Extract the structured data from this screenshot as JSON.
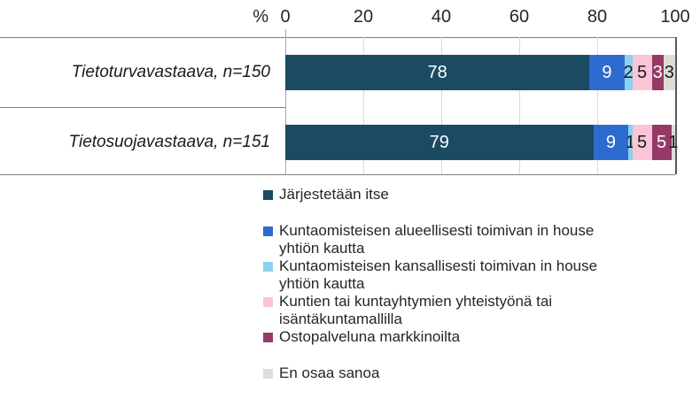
{
  "chart_data": {
    "type": "bar",
    "subtype": "horizontal-stacked",
    "unit": "%",
    "title": "",
    "xlabel": "%",
    "ylabel": "",
    "xlim": [
      0,
      100
    ],
    "ticks": [
      0,
      20,
      40,
      60,
      80,
      100
    ],
    "grid": true,
    "legend_position": "bottom",
    "categories": [
      "Tietoturvavastaava, n=150",
      "Tietosuojavastaava, n=151"
    ],
    "series": [
      {
        "name": "Järjestetään itse",
        "color": "#1b4a63",
        "label_color": "#ffffff",
        "values": [
          78,
          79
        ]
      },
      {
        "name": "Kuntaomisteisen alueellisesti toimivan in house\nyhtiön kautta",
        "color": "#2e6bd0",
        "label_color": "#ffffff",
        "values": [
          9,
          9
        ]
      },
      {
        "name": "Kuntaomisteisen kansallisesti toimivan in house\nyhtiön kautta",
        "color": "#8dd0ef",
        "label_color": "#1a1a1a",
        "values": [
          2,
          1
        ]
      },
      {
        "name": "Kuntien tai kuntayhtymien yhteistyönä tai\nisäntäkuntamallilla",
        "color": "#fac5d6",
        "label_color": "#1a1a1a",
        "values": [
          5,
          5
        ]
      },
      {
        "name": "Ostopalveluna markkinoilta",
        "color": "#953a67",
        "label_color": "#ffffff",
        "values": [
          3,
          5
        ]
      },
      {
        "name": "En osaa sanoa",
        "color": "#dedcd5",
        "label_color": "#1a1a1a",
        "values": [
          3,
          1
        ]
      }
    ],
    "legend_gaps_before_series": [
      1,
      5
    ]
  },
  "layout_colors": {
    "grid_light": "#d9d9d9",
    "axis_zero_line": "#a6a6a6",
    "axis_end_line": "#595959",
    "frame_line": "#7f7f7f"
  }
}
